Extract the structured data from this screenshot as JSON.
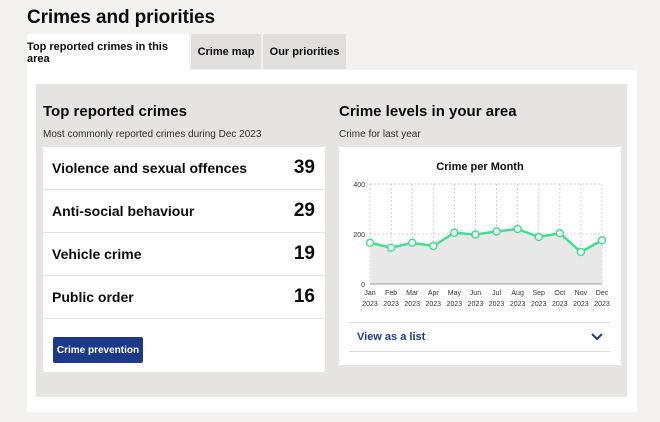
{
  "page": {
    "title": "Crimes and priorities"
  },
  "tabs": [
    {
      "label": "Top reported crimes in this area",
      "active": true
    },
    {
      "label": "Crime map",
      "active": false
    },
    {
      "label": "Our priorities",
      "active": false
    }
  ],
  "top_crimes": {
    "heading": "Top reported crimes",
    "subheading": "Most commonly reported crimes during Dec 2023",
    "items": [
      {
        "name": "Violence and sexual offences",
        "count": "39"
      },
      {
        "name": "Anti-social behaviour",
        "count": "29"
      },
      {
        "name": "Vehicle crime",
        "count": "19"
      },
      {
        "name": "Public order",
        "count": "16"
      }
    ],
    "button_label": "Crime prevention"
  },
  "crime_levels": {
    "heading": "Crime levels in your area",
    "subheading": "Crime for last year",
    "list_toggle_label": "View as a list"
  },
  "colors": {
    "accent": "#1d3a8a",
    "line": "#3ee08f",
    "area": "#e8e8e8"
  },
  "chart_data": {
    "type": "area",
    "title": "Crime per Month",
    "categories": [
      "Jan 2023",
      "Feb 2023",
      "Mar 2023",
      "Apr 2023",
      "May 2023",
      "Jun 2023",
      "Jul 2023",
      "Aug 2023",
      "Sep 2023",
      "Oct 2023",
      "Nov 2023",
      "Dec 2023"
    ],
    "x_month_labels": [
      "Jan",
      "Feb",
      "Mar",
      "Apr",
      "May",
      "Jun",
      "Jul",
      "Aug",
      "Sep",
      "Oct",
      "Nov",
      "Dec"
    ],
    "x_year_labels": [
      "2023",
      "2023",
      "2023",
      "2023",
      "2023",
      "2023",
      "2023",
      "2023",
      "2023",
      "2023",
      "2023",
      "2023"
    ],
    "values": [
      165,
      145,
      165,
      152,
      205,
      198,
      210,
      220,
      188,
      203,
      128,
      175
    ],
    "ylim": [
      0,
      400
    ],
    "y_ticks": [
      0,
      200,
      400
    ],
    "grid": true,
    "xlabel": "",
    "ylabel": ""
  }
}
